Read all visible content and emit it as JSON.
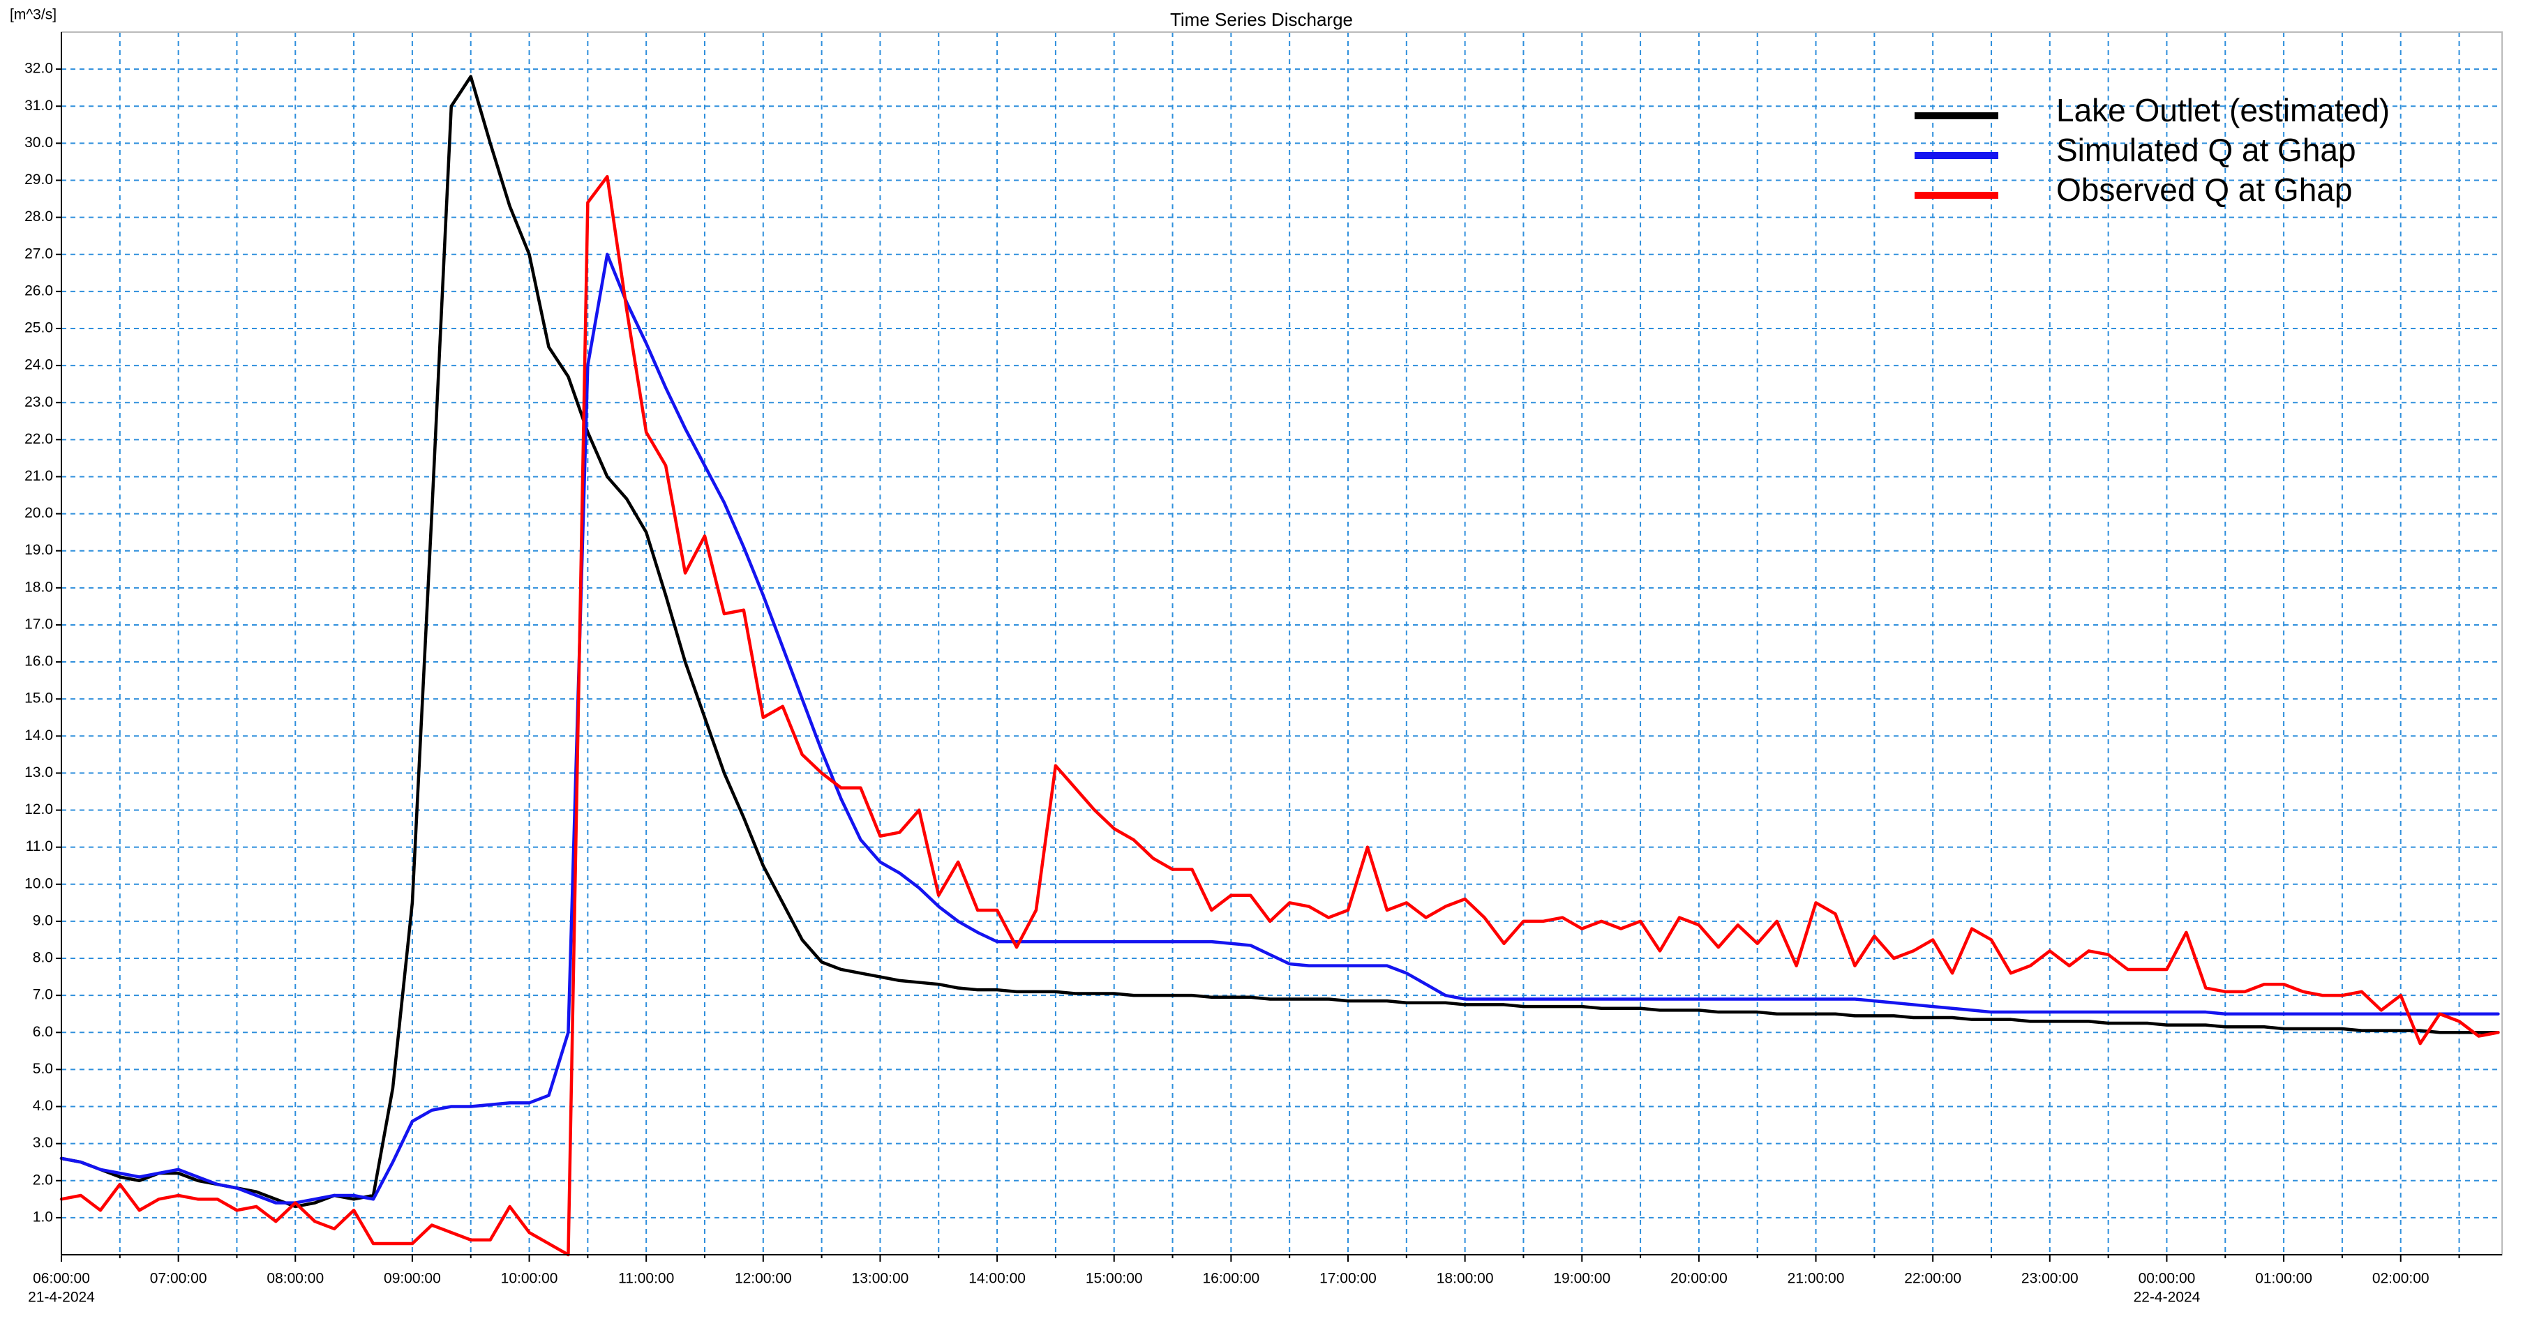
{
  "chart_data": {
    "type": "line",
    "title": "Time Series Discharge",
    "y_axis_label": "[m^3/s]",
    "x": [
      "2024-04-21T06:00",
      "2024-04-21T06:10",
      "2024-04-21T06:20",
      "2024-04-21T06:30",
      "2024-04-21T06:40",
      "2024-04-21T06:50",
      "2024-04-21T07:00",
      "2024-04-21T07:10",
      "2024-04-21T07:20",
      "2024-04-21T07:30",
      "2024-04-21T07:40",
      "2024-04-21T07:50",
      "2024-04-21T08:00",
      "2024-04-21T08:10",
      "2024-04-21T08:20",
      "2024-04-21T08:30",
      "2024-04-21T08:40",
      "2024-04-21T08:50",
      "2024-04-21T09:00",
      "2024-04-21T09:10",
      "2024-04-21T09:20",
      "2024-04-21T09:30",
      "2024-04-21T09:40",
      "2024-04-21T09:50",
      "2024-04-21T10:00",
      "2024-04-21T10:10",
      "2024-04-21T10:20",
      "2024-04-21T10:30",
      "2024-04-21T10:40",
      "2024-04-21T10:50",
      "2024-04-21T11:00",
      "2024-04-21T11:10",
      "2024-04-21T11:20",
      "2024-04-21T11:30",
      "2024-04-21T11:40",
      "2024-04-21T11:50",
      "2024-04-21T12:00",
      "2024-04-21T12:10",
      "2024-04-21T12:20",
      "2024-04-21T12:30",
      "2024-04-21T12:40",
      "2024-04-21T12:50",
      "2024-04-21T13:00",
      "2024-04-21T13:10",
      "2024-04-21T13:20",
      "2024-04-21T13:30",
      "2024-04-21T13:40",
      "2024-04-21T13:50",
      "2024-04-21T14:00",
      "2024-04-21T14:10",
      "2024-04-21T14:20",
      "2024-04-21T14:30",
      "2024-04-21T14:40",
      "2024-04-21T14:50",
      "2024-04-21T15:00",
      "2024-04-21T15:10",
      "2024-04-21T15:20",
      "2024-04-21T15:30",
      "2024-04-21T15:40",
      "2024-04-21T15:50",
      "2024-04-21T16:00",
      "2024-04-21T16:10",
      "2024-04-21T16:20",
      "2024-04-21T16:30",
      "2024-04-21T16:40",
      "2024-04-21T16:50",
      "2024-04-21T17:00",
      "2024-04-21T17:10",
      "2024-04-21T17:20",
      "2024-04-21T17:30",
      "2024-04-21T17:40",
      "2024-04-21T17:50",
      "2024-04-21T18:00",
      "2024-04-21T18:10",
      "2024-04-21T18:20",
      "2024-04-21T18:30",
      "2024-04-21T18:40",
      "2024-04-21T18:50",
      "2024-04-21T19:00",
      "2024-04-21T19:10",
      "2024-04-21T19:20",
      "2024-04-21T19:30",
      "2024-04-21T19:40",
      "2024-04-21T19:50",
      "2024-04-21T20:00",
      "2024-04-21T20:10",
      "2024-04-21T20:20",
      "2024-04-21T20:30",
      "2024-04-21T20:40",
      "2024-04-21T20:50",
      "2024-04-21T21:00",
      "2024-04-21T21:10",
      "2024-04-21T21:20",
      "2024-04-21T21:30",
      "2024-04-21T21:40",
      "2024-04-21T21:50",
      "2024-04-21T22:00",
      "2024-04-21T22:10",
      "2024-04-21T22:20",
      "2024-04-21T22:30",
      "2024-04-21T22:40",
      "2024-04-21T22:50",
      "2024-04-21T23:00",
      "2024-04-21T23:10",
      "2024-04-21T23:20",
      "2024-04-21T23:30",
      "2024-04-21T23:40",
      "2024-04-21T23:50",
      "2024-04-22T00:00",
      "2024-04-22T00:10",
      "2024-04-22T00:20",
      "2024-04-22T00:30",
      "2024-04-22T00:40",
      "2024-04-22T00:50",
      "2024-04-22T01:00",
      "2024-04-22T01:10",
      "2024-04-22T01:20",
      "2024-04-22T01:30",
      "2024-04-22T01:40",
      "2024-04-22T01:50",
      "2024-04-22T02:00",
      "2024-04-22T02:10",
      "2024-04-22T02:20",
      "2024-04-22T02:30",
      "2024-04-22T02:40",
      "2024-04-22T02:50"
    ],
    "series": [
      {
        "name": "Lake Outlet (estimated)",
        "color": "#000000",
        "values": [
          2.6,
          2.5,
          2.3,
          2.1,
          2.0,
          2.2,
          2.2,
          2.0,
          1.9,
          1.8,
          1.7,
          1.5,
          1.3,
          1.4,
          1.6,
          1.5,
          1.6,
          4.5,
          9.5,
          20,
          31,
          31.8,
          30,
          28.3,
          27,
          24.5,
          23.7,
          22.2,
          21,
          20.4,
          19.5,
          17.8,
          16,
          14.5,
          13,
          11.8,
          10.5,
          9.5,
          8.5,
          7.9,
          7.7,
          7.6,
          7.5,
          7.4,
          7.35,
          7.3,
          7.2,
          7.15,
          7.15,
          7.1,
          7.1,
          7.1,
          7.05,
          7.05,
          7.05,
          7.0,
          7.0,
          7.0,
          7.0,
          6.95,
          6.95,
          6.95,
          6.9,
          6.9,
          6.9,
          6.9,
          6.85,
          6.85,
          6.85,
          6.8,
          6.8,
          6.8,
          6.75,
          6.75,
          6.75,
          6.7,
          6.7,
          6.7,
          6.7,
          6.65,
          6.65,
          6.65,
          6.6,
          6.6,
          6.6,
          6.55,
          6.55,
          6.55,
          6.5,
          6.5,
          6.5,
          6.5,
          6.45,
          6.45,
          6.45,
          6.4,
          6.4,
          6.4,
          6.35,
          6.35,
          6.35,
          6.3,
          6.3,
          6.3,
          6.3,
          6.25,
          6.25,
          6.25,
          6.2,
          6.2,
          6.2,
          6.15,
          6.15,
          6.15,
          6.1,
          6.1,
          6.1,
          6.1,
          6.05,
          6.05,
          6.05,
          6.05,
          6.0,
          6.0,
          6.0,
          6.0
        ]
      },
      {
        "name": "Simulated Q at Ghap",
        "color": "#1414f0",
        "values": [
          2.6,
          2.5,
          2.3,
          2.2,
          2.1,
          2.2,
          2.3,
          2.1,
          1.9,
          1.8,
          1.6,
          1.4,
          1.4,
          1.5,
          1.6,
          1.6,
          1.5,
          2.5,
          3.6,
          3.9,
          4.0,
          4.0,
          4.05,
          4.1,
          4.1,
          4.3,
          6.0,
          24,
          27,
          25.7,
          24.6,
          23.4,
          22.3,
          21.3,
          20.3,
          19.1,
          17.8,
          16.4,
          15,
          13.6,
          12.3,
          11.2,
          10.6,
          10.3,
          9.9,
          9.4,
          9.0,
          8.7,
          8.45,
          8.45,
          8.45,
          8.45,
          8.45,
          8.45,
          8.45,
          8.45,
          8.45,
          8.45,
          8.45,
          8.45,
          8.4,
          8.35,
          8.1,
          7.85,
          7.8,
          7.8,
          7.8,
          7.8,
          7.8,
          7.6,
          7.3,
          7.0,
          6.9,
          6.9,
          6.9,
          6.9,
          6.9,
          6.9,
          6.9,
          6.9,
          6.9,
          6.9,
          6.9,
          6.9,
          6.9,
          6.9,
          6.9,
          6.9,
          6.9,
          6.9,
          6.9,
          6.9,
          6.9,
          6.85,
          6.8,
          6.75,
          6.7,
          6.65,
          6.6,
          6.55,
          6.55,
          6.55,
          6.55,
          6.55,
          6.55,
          6.55,
          6.55,
          6.55,
          6.55,
          6.55,
          6.55,
          6.5,
          6.5,
          6.5,
          6.5,
          6.5,
          6.5,
          6.5,
          6.5,
          6.5,
          6.5,
          6.5,
          6.5,
          6.5,
          6.5,
          6.5
        ]
      },
      {
        "name": "Observed Q at Ghap",
        "color": "#ff0000",
        "values": [
          1.5,
          1.6,
          1.2,
          1.9,
          1.2,
          1.5,
          1.6,
          1.5,
          1.5,
          1.2,
          1.3,
          0.9,
          1.4,
          0.9,
          0.7,
          1.2,
          0.3,
          0.3,
          0.3,
          0.8,
          0.6,
          0.4,
          0.4,
          1.3,
          0.6,
          0.3,
          0.0,
          28.4,
          29.1,
          25.5,
          22.2,
          21.3,
          18.4,
          19.4,
          17.3,
          17.4,
          14.5,
          14.8,
          13.5,
          13.0,
          12.6,
          12.6,
          11.3,
          11.4,
          12.0,
          9.7,
          10.6,
          9.3,
          9.3,
          8.3,
          9.3,
          13.2,
          12.6,
          12.0,
          11.5,
          11.2,
          10.7,
          10.4,
          10.4,
          9.3,
          9.7,
          9.7,
          9.0,
          9.5,
          9.4,
          9.1,
          9.3,
          11.0,
          9.3,
          9.5,
          9.1,
          9.4,
          9.6,
          9.1,
          8.4,
          9.0,
          9.0,
          9.1,
          8.8,
          9.0,
          8.8,
          9.0,
          8.2,
          9.1,
          8.9,
          8.3,
          8.9,
          8.4,
          9.0,
          7.8,
          9.5,
          9.2,
          7.8,
          8.6,
          8.0,
          8.2,
          8.5,
          7.6,
          8.8,
          8.5,
          7.6,
          7.8,
          8.2,
          7.8,
          8.2,
          8.1,
          7.7,
          7.7,
          7.7,
          8.7,
          7.2,
          7.1,
          7.1,
          7.3,
          7.3,
          7.1,
          7.0,
          7.0,
          7.1,
          6.6,
          7.0,
          5.7,
          6.5,
          6.3,
          5.9,
          6.0
        ]
      }
    ],
    "xlim": [
      "2024-04-21T06:00",
      "2024-04-22T02:52"
    ],
    "xticks": [
      {
        "value": "2024-04-21T06:00",
        "label": "06:00:00"
      },
      {
        "value": "2024-04-21T07:00",
        "label": "07:00:00"
      },
      {
        "value": "2024-04-21T08:00",
        "label": "08:00:00"
      },
      {
        "value": "2024-04-21T09:00",
        "label": "09:00:00"
      },
      {
        "value": "2024-04-21T10:00",
        "label": "10:00:00"
      },
      {
        "value": "2024-04-21T11:00",
        "label": "11:00:00"
      },
      {
        "value": "2024-04-21T12:00",
        "label": "12:00:00"
      },
      {
        "value": "2024-04-21T13:00",
        "label": "13:00:00"
      },
      {
        "value": "2024-04-21T14:00",
        "label": "14:00:00"
      },
      {
        "value": "2024-04-21T15:00",
        "label": "15:00:00"
      },
      {
        "value": "2024-04-21T16:00",
        "label": "16:00:00"
      },
      {
        "value": "2024-04-21T17:00",
        "label": "17:00:00"
      },
      {
        "value": "2024-04-21T18:00",
        "label": "18:00:00"
      },
      {
        "value": "2024-04-21T19:00",
        "label": "19:00:00"
      },
      {
        "value": "2024-04-21T20:00",
        "label": "20:00:00"
      },
      {
        "value": "2024-04-21T21:00",
        "label": "21:00:00"
      },
      {
        "value": "2024-04-21T22:00",
        "label": "22:00:00"
      },
      {
        "value": "2024-04-21T23:00",
        "label": "23:00:00"
      },
      {
        "value": "2024-04-22T00:00",
        "label": "00:00:00"
      },
      {
        "value": "2024-04-22T01:00",
        "label": "01:00:00"
      },
      {
        "value": "2024-04-22T02:00",
        "label": "02:00:00"
      }
    ],
    "x_minor_ticks": [
      "2024-04-21T06:30",
      "2024-04-21T07:30",
      "2024-04-21T08:30",
      "2024-04-21T09:30",
      "2024-04-21T10:30",
      "2024-04-21T11:30",
      "2024-04-21T12:30",
      "2024-04-21T13:30",
      "2024-04-21T14:30",
      "2024-04-21T15:30",
      "2024-04-21T16:30",
      "2024-04-21T17:30",
      "2024-04-21T18:30",
      "2024-04-21T19:30",
      "2024-04-21T20:30",
      "2024-04-21T21:30",
      "2024-04-21T22:30",
      "2024-04-21T23:30",
      "2024-04-22T00:30",
      "2024-04-22T01:30",
      "2024-04-22T02:30"
    ],
    "date_labels": [
      {
        "value": "2024-04-21T06:00",
        "label": "21-4-2024"
      },
      {
        "value": "2024-04-22T00:00",
        "label": "22-4-2024"
      }
    ],
    "ylim": [
      0,
      33
    ],
    "yticks": [
      {
        "value": 1,
        "label": "1.0"
      },
      {
        "value": 2,
        "label": "2.0"
      },
      {
        "value": 3,
        "label": "3.0"
      },
      {
        "value": 4,
        "label": "4.0"
      },
      {
        "value": 5,
        "label": "5.0"
      },
      {
        "value": 6,
        "label": "6.0"
      },
      {
        "value": 7,
        "label": "7.0"
      },
      {
        "value": 8,
        "label": "8.0"
      },
      {
        "value": 9,
        "label": "9.0"
      },
      {
        "value": 10,
        "label": "10.0"
      },
      {
        "value": 11,
        "label": "11.0"
      },
      {
        "value": 12,
        "label": "12.0"
      },
      {
        "value": 13,
        "label": "13.0"
      },
      {
        "value": 14,
        "label": "14.0"
      },
      {
        "value": 15,
        "label": "15.0"
      },
      {
        "value": 16,
        "label": "16.0"
      },
      {
        "value": 17,
        "label": "17.0"
      },
      {
        "value": 18,
        "label": "18.0"
      },
      {
        "value": 19,
        "label": "19.0"
      },
      {
        "value": 20,
        "label": "20.0"
      },
      {
        "value": 21,
        "label": "21.0"
      },
      {
        "value": 22,
        "label": "22.0"
      },
      {
        "value": 23,
        "label": "23.0"
      },
      {
        "value": 24,
        "label": "24.0"
      },
      {
        "value": 25,
        "label": "25.0"
      },
      {
        "value": 26,
        "label": "26.0"
      },
      {
        "value": 27,
        "label": "27.0"
      },
      {
        "value": 28,
        "label": "28.0"
      },
      {
        "value": 29,
        "label": "29.0"
      },
      {
        "value": 30,
        "label": "30.0"
      },
      {
        "value": 31,
        "label": "31.0"
      },
      {
        "value": 32,
        "label": "32.0"
      }
    ],
    "grid": true,
    "grid_color": "#2f8fdc",
    "legend": "upper right"
  }
}
